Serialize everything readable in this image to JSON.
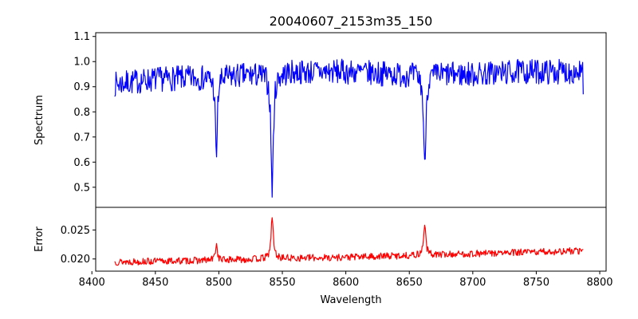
{
  "chart_data": {
    "type": "line",
    "title": "20040607_2153m35_150",
    "xlabel": "Wavelength",
    "xlim": [
      8403,
      8805
    ],
    "xticks": [
      8400,
      8450,
      8500,
      8550,
      8600,
      8650,
      8700,
      8750,
      8800
    ],
    "panels": [
      {
        "name": "spectrum-panel",
        "ylabel": "Spectrum",
        "ylim": [
          0.42,
          1.115
        ],
        "yticks": [
          0.5,
          0.6,
          0.7,
          0.8,
          0.9,
          1.0,
          1.1
        ],
        "ytick_labels": [
          "0.5",
          "0.6",
          "0.7",
          "0.8",
          "0.9",
          "1.0",
          "1.1"
        ],
        "color": "#0000ff",
        "x_range": [
          8418,
          8787
        ],
        "n_points": 760,
        "seed": 7,
        "noise": 0.05,
        "series": {
          "name": "",
          "profile": "continuum",
          "base": [
            [
              8418,
              0.91
            ],
            [
              8450,
              0.93
            ],
            [
              8500,
              0.94
            ],
            [
              8560,
              0.96
            ],
            [
              8600,
              0.96
            ],
            [
              8640,
              0.95
            ],
            [
              8700,
              0.95
            ],
            [
              8740,
              0.96
            ],
            [
              8787,
              0.96
            ]
          ],
          "features": [
            {
              "center": 8498.0,
              "depth": 0.33,
              "width": 0.9
            },
            {
              "center": 8542.0,
              "depth": 0.47,
              "width": 1.1
            },
            {
              "center": 8662.1,
              "depth": 0.38,
              "width": 1.0
            }
          ],
          "final_value": 0.87
        }
      },
      {
        "name": "error-panel",
        "ylabel": "Error",
        "ylim": [
          0.0179,
          0.0289
        ],
        "yticks": [
          0.02,
          0.025
        ],
        "ytick_labels": [
          "0.020",
          "0.025"
        ],
        "color": "#ff0000",
        "x_range": [
          8418,
          8787
        ],
        "n_points": 760,
        "seed": 13,
        "noise": 0.0006,
        "series": {
          "name": "",
          "profile": "continuum",
          "base": [
            [
              8418,
              0.0195
            ],
            [
              8450,
              0.0196
            ],
            [
              8500,
              0.0198
            ],
            [
              8550,
              0.0201
            ],
            [
              8600,
              0.0203
            ],
            [
              8650,
              0.0206
            ],
            [
              8700,
              0.0209
            ],
            [
              8750,
              0.0212
            ],
            [
              8787,
              0.0214
            ]
          ],
          "features": [
            {
              "center": 8498.0,
              "depth": -0.0028,
              "width": 0.9
            },
            {
              "center": 8542.0,
              "depth": -0.007,
              "width": 1.1
            },
            {
              "center": 8662.1,
              "depth": -0.0055,
              "width": 1.0
            }
          ],
          "final_value": 0.0216
        }
      }
    ]
  }
}
